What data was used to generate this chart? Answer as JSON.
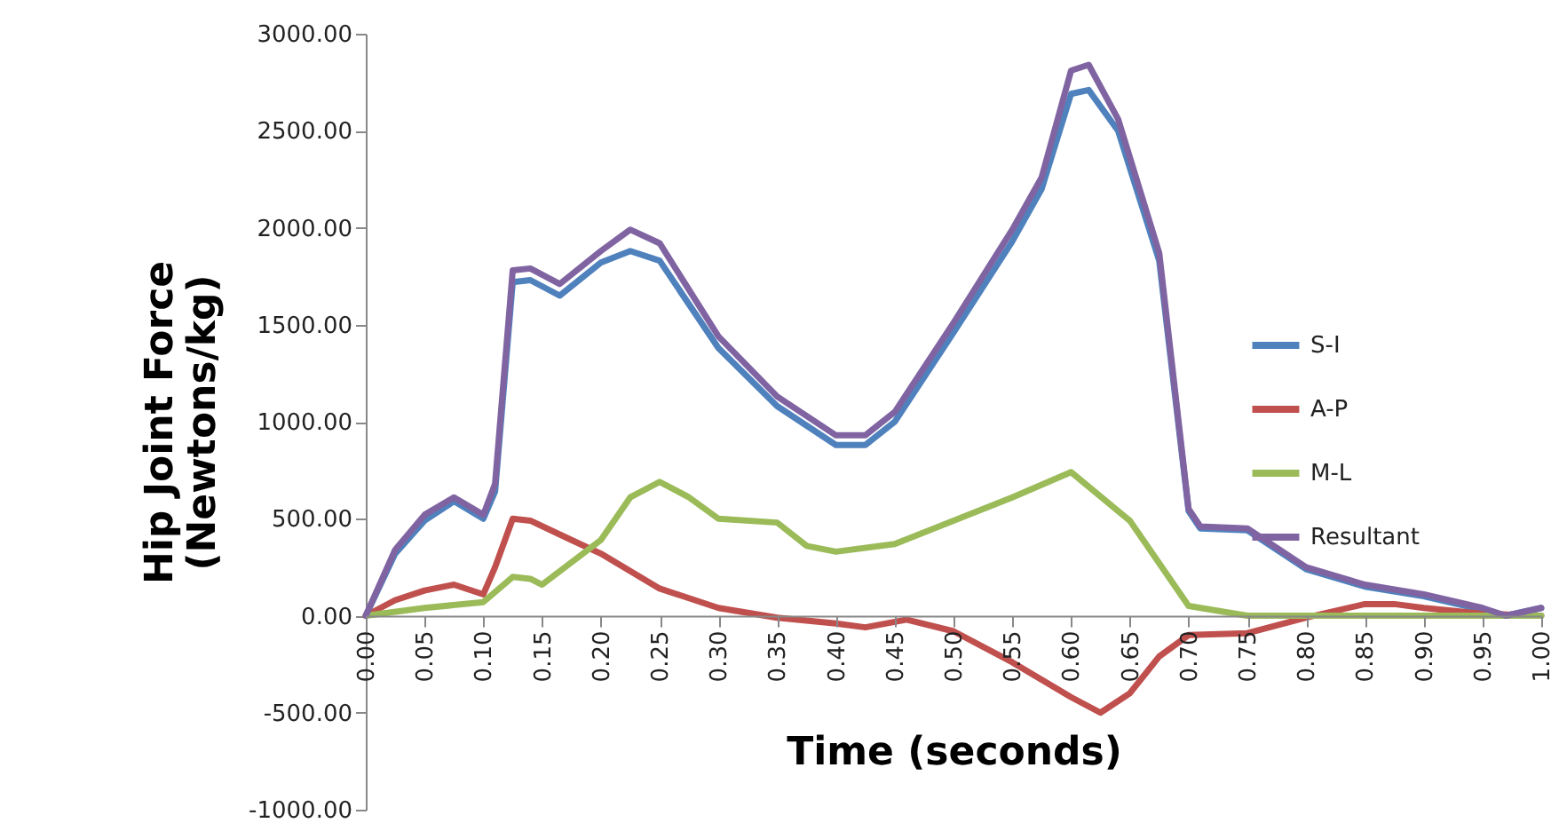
{
  "chart_data": {
    "type": "line",
    "xlabel": "Time (seconds)",
    "ylabel": "Hip Joint Force (Newtons/kg)",
    "xlim": [
      0,
      1
    ],
    "ylim": [
      -1000,
      3000
    ],
    "xticks": [
      {
        "value": 0,
        "label": "0.00"
      },
      {
        "value": 0.05,
        "label": "0.05"
      },
      {
        "value": 0.1,
        "label": "0.10"
      },
      {
        "value": 0.15,
        "label": "0.15"
      },
      {
        "value": 0.2,
        "label": "0.20"
      },
      {
        "value": 0.25,
        "label": "0.25"
      },
      {
        "value": 0.3,
        "label": "0.30"
      },
      {
        "value": 0.35,
        "label": "0.35"
      },
      {
        "value": 0.4,
        "label": "0.40"
      },
      {
        "value": 0.45,
        "label": "0.45"
      },
      {
        "value": 0.5,
        "label": "0.50"
      },
      {
        "value": 0.55,
        "label": "0.55"
      },
      {
        "value": 0.6,
        "label": "0.60"
      },
      {
        "value": 0.65,
        "label": "0.65"
      },
      {
        "value": 0.7,
        "label": "0.70"
      },
      {
        "value": 0.75,
        "label": "0.75"
      },
      {
        "value": 0.8,
        "label": "0.80"
      },
      {
        "value": 0.85,
        "label": "0.85"
      },
      {
        "value": 0.9,
        "label": "0.90"
      },
      {
        "value": 0.95,
        "label": "0.95"
      },
      {
        "value": 1,
        "label": "1.00"
      }
    ],
    "yticks": [
      {
        "value": -1000,
        "label": "-1000.00"
      },
      {
        "value": -500,
        "label": "-500.00"
      },
      {
        "value": 0,
        "label": "0.00"
      },
      {
        "value": 500,
        "label": "500.00"
      },
      {
        "value": 1000,
        "label": "1000.00"
      },
      {
        "value": 1500,
        "label": "1500.00"
      },
      {
        "value": 2000,
        "label": "2000.00"
      },
      {
        "value": 2500,
        "label": "2500.00"
      },
      {
        "value": 3000,
        "label": "3000.00"
      }
    ],
    "grid": false,
    "legend": "right",
    "marker": "none",
    "line_style": "solid",
    "series": [
      {
        "name": "S-I",
        "color": "#4f81bd",
        "x": [
          0,
          0.025,
          0.05,
          0.075,
          0.1,
          0.11,
          0.125,
          0.14,
          0.165,
          0.2,
          0.225,
          0.25,
          0.3,
          0.35,
          0.4,
          0.425,
          0.45,
          0.5,
          0.55,
          0.575,
          0.6,
          0.615,
          0.64,
          0.675,
          0.7,
          0.71,
          0.75,
          0.8,
          0.85,
          0.9,
          0.95,
          0.97,
          1
        ],
        "values": [
          0,
          320,
          490,
          590,
          500,
          640,
          1720,
          1730,
          1650,
          1820,
          1880,
          1830,
          1380,
          1080,
          880,
          880,
          1000,
          1460,
          1930,
          2200,
          2690,
          2710,
          2500,
          1830,
          540,
          450,
          440,
          240,
          150,
          100,
          30,
          0,
          40
        ]
      },
      {
        "name": "A-P",
        "color": "#c0504d",
        "x": [
          0,
          0.025,
          0.05,
          0.075,
          0.1,
          0.11,
          0.125,
          0.14,
          0.175,
          0.2,
          0.25,
          0.3,
          0.35,
          0.4,
          0.425,
          0.46,
          0.5,
          0.55,
          0.6,
          0.625,
          0.65,
          0.675,
          0.7,
          0.75,
          0.8,
          0.85,
          0.875,
          0.9,
          0.95,
          1
        ],
        "values": [
          0,
          80,
          130,
          160,
          110,
          250,
          500,
          490,
          390,
          320,
          140,
          40,
          -10,
          -40,
          -60,
          -20,
          -80,
          -240,
          -420,
          -500,
          -400,
          -210,
          -100,
          -90,
          -10,
          60,
          60,
          40,
          10,
          0
        ]
      },
      {
        "name": "M-L",
        "color": "#9bbb59",
        "x": [
          0,
          0.05,
          0.1,
          0.125,
          0.14,
          0.15,
          0.2,
          0.225,
          0.25,
          0.275,
          0.3,
          0.35,
          0.375,
          0.4,
          0.45,
          0.5,
          0.55,
          0.6,
          0.65,
          0.7,
          0.75,
          0.8,
          0.9,
          1
        ],
        "values": [
          0,
          40,
          70,
          200,
          190,
          160,
          390,
          610,
          690,
          610,
          500,
          480,
          360,
          330,
          370,
          490,
          610,
          740,
          490,
          50,
          0,
          0,
          0,
          0
        ]
      },
      {
        "name": "Resultant",
        "color": "#8064a2",
        "x": [
          0,
          0.025,
          0.05,
          0.075,
          0.1,
          0.11,
          0.125,
          0.14,
          0.165,
          0.2,
          0.225,
          0.25,
          0.3,
          0.35,
          0.4,
          0.425,
          0.45,
          0.5,
          0.55,
          0.575,
          0.6,
          0.615,
          0.64,
          0.675,
          0.7,
          0.71,
          0.75,
          0.8,
          0.85,
          0.9,
          0.95,
          0.97,
          1
        ],
        "values": [
          0,
          340,
          520,
          610,
          520,
          680,
          1780,
          1790,
          1710,
          1880,
          1990,
          1920,
          1440,
          1130,
          930,
          930,
          1050,
          1510,
          1990,
          2260,
          2810,
          2840,
          2560,
          1870,
          550,
          460,
          450,
          250,
          160,
          110,
          40,
          0,
          40
        ]
      }
    ]
  }
}
